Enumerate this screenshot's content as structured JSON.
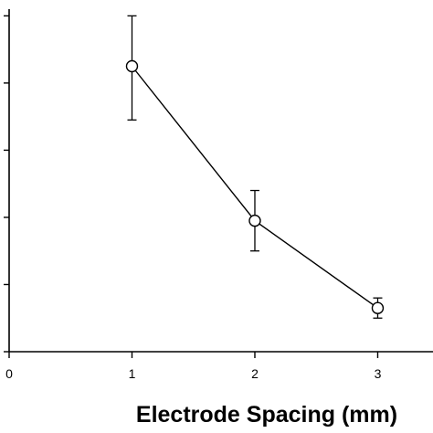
{
  "chart_data": {
    "type": "line",
    "title": "",
    "xlabel": "Electrode Spacing (mm)",
    "ylabel": "",
    "xlim": [
      0,
      3.45
    ],
    "ylim": [
      0,
      5.1
    ],
    "x_ticks": [
      0,
      1,
      2,
      3
    ],
    "x_tick_labels": [
      "0",
      "1",
      "2",
      "3"
    ],
    "y_ticks": [
      0,
      1,
      2,
      3,
      4,
      5
    ],
    "grid": false,
    "series": [
      {
        "marker": "open-circle",
        "color": "#000000",
        "points": [
          {
            "x": 1,
            "y": 4.25,
            "err_low": 3.45,
            "err_high": 5.0
          },
          {
            "x": 2,
            "y": 1.95,
            "err_low": 1.5,
            "err_high": 2.4
          },
          {
            "x": 3,
            "y": 0.65,
            "err_low": 0.5,
            "err_high": 0.8
          }
        ]
      }
    ]
  }
}
